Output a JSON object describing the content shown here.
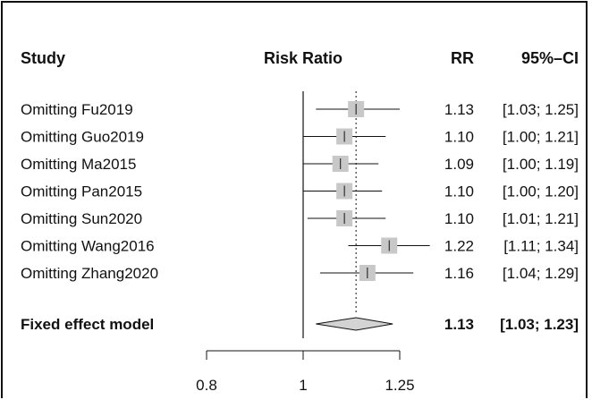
{
  "chart_data": {
    "type": "forest",
    "headers": {
      "study": "Study",
      "plot": "Risk Ratio",
      "rr": "RR",
      "ci": "95%–CI"
    },
    "studies": [
      {
        "label": "Omitting Fu2019",
        "rr": 1.13,
        "lower": 1.03,
        "upper": 1.25,
        "rr_text": "1.13",
        "ci_text": "[1.03; 1.25]"
      },
      {
        "label": "Omitting Guo2019",
        "rr": 1.1,
        "lower": 1.0,
        "upper": 1.21,
        "rr_text": "1.10",
        "ci_text": "[1.00; 1.21]"
      },
      {
        "label": "Omitting Ma2015",
        "rr": 1.09,
        "lower": 1.0,
        "upper": 1.19,
        "rr_text": "1.09",
        "ci_text": "[1.00; 1.19]"
      },
      {
        "label": "Omitting Pan2015",
        "rr": 1.1,
        "lower": 1.0,
        "upper": 1.2,
        "rr_text": "1.10",
        "ci_text": "[1.00; 1.20]"
      },
      {
        "label": "Omitting Sun2020",
        "rr": 1.1,
        "lower": 1.01,
        "upper": 1.21,
        "rr_text": "1.10",
        "ci_text": "[1.01; 1.21]"
      },
      {
        "label": "Omitting Wang2016",
        "rr": 1.22,
        "lower": 1.11,
        "upper": 1.34,
        "rr_text": "1.22",
        "ci_text": "[1.11; 1.34]"
      },
      {
        "label": "Omitting Zhang2020",
        "rr": 1.16,
        "lower": 1.04,
        "upper": 1.29,
        "rr_text": "1.16",
        "ci_text": "[1.04; 1.29]"
      }
    ],
    "summary": {
      "label": "Fixed effect model",
      "rr": 1.13,
      "lower": 1.03,
      "upper": 1.23,
      "rr_text": "1.13",
      "ci_text": "[1.03; 1.23]"
    },
    "x_axis": {
      "scale": "log",
      "ticks": [
        0.8,
        1,
        1.25
      ],
      "tick_labels": [
        "0.8",
        "1",
        "1.25"
      ],
      "reference_line": 1
    },
    "colors": {
      "box": "#c8c8c8",
      "line": "#111111",
      "diamond_fill": "#d3d3d3"
    }
  }
}
